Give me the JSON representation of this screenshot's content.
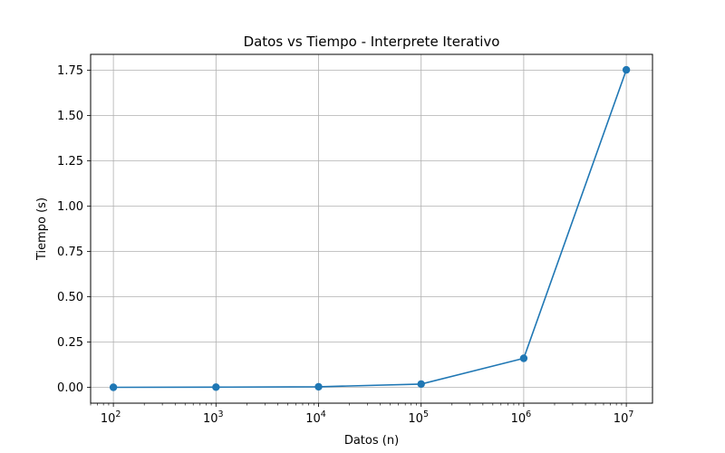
{
  "chart_data": {
    "type": "line",
    "title": "Datos vs Tiempo - Interprete Iterativo",
    "xlabel": "Datos (n)",
    "ylabel": "Tiempo (s)",
    "x_scale": "log",
    "xlim": [
      60,
      18000000
    ],
    "ylim": [
      -0.0875,
      1.8375
    ],
    "grid": true,
    "x_ticks": [
      {
        "value": 100,
        "base": "10",
        "exp": "2"
      },
      {
        "value": 1000,
        "base": "10",
        "exp": "3"
      },
      {
        "value": 10000,
        "base": "10",
        "exp": "4"
      },
      {
        "value": 100000,
        "base": "10",
        "exp": "5"
      },
      {
        "value": 1000000,
        "base": "10",
        "exp": "6"
      },
      {
        "value": 10000000,
        "base": "10",
        "exp": "7"
      }
    ],
    "y_ticks": [
      {
        "value": 0.0,
        "label": "0.00"
      },
      {
        "value": 0.25,
        "label": "0.25"
      },
      {
        "value": 0.5,
        "label": "0.50"
      },
      {
        "value": 0.75,
        "label": "0.75"
      },
      {
        "value": 1.0,
        "label": "1.00"
      },
      {
        "value": 1.25,
        "label": "1.25"
      },
      {
        "value": 1.5,
        "label": "1.50"
      },
      {
        "value": 1.75,
        "label": "1.75"
      }
    ],
    "series": [
      {
        "color": "#1f77b4",
        "marker": "circle",
        "x": [
          100,
          1000,
          10000,
          100000,
          1000000,
          10000000
        ],
        "y": [
          0.0,
          0.001,
          0.003,
          0.018,
          0.16,
          1.752
        ]
      }
    ]
  }
}
